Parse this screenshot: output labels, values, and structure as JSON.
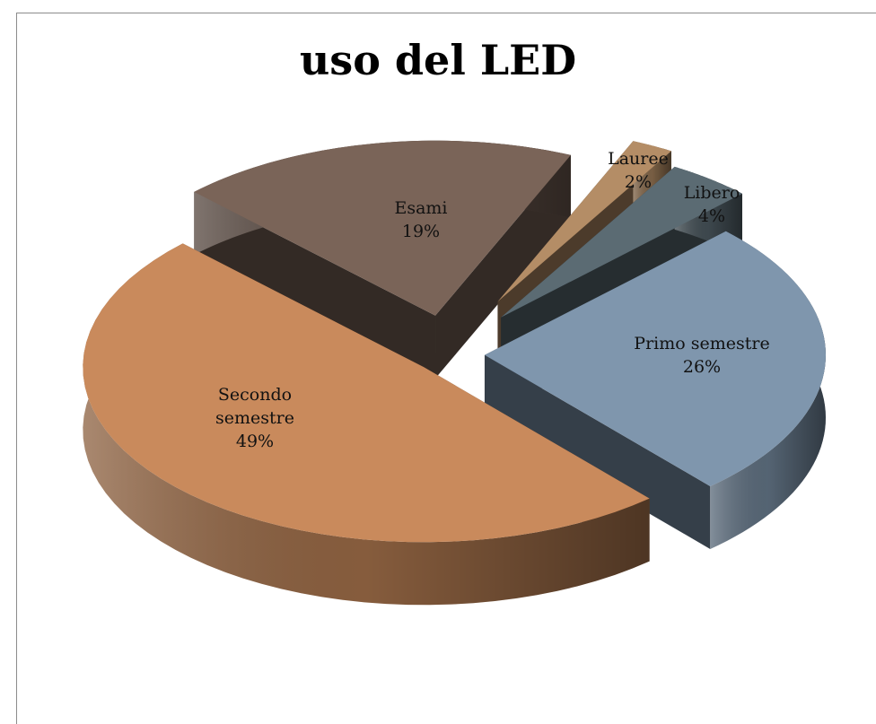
{
  "chart_data": {
    "type": "pie",
    "title": "uso del LED",
    "slices": [
      {
        "label": "Primo semestre",
        "value": 26,
        "value_label": "26%",
        "color": "#7f96ad",
        "label_lines": [
          "Primo semestre",
          "26%"
        ]
      },
      {
        "label": "Secondo semestre",
        "value": 49,
        "value_label": "49%",
        "color": "#c98a5c",
        "label_lines": [
          "Secondo",
          "semestre",
          "49%"
        ]
      },
      {
        "label": "Esami",
        "value": 19,
        "value_label": "19%",
        "color": "#7a6458",
        "label_lines": [
          "Esami",
          "19%"
        ]
      },
      {
        "label": "Lauree",
        "value": 2,
        "value_label": "2%",
        "color": "#b48d66",
        "label_lines": [
          "Lauree",
          "2%"
        ]
      },
      {
        "label": "Libero",
        "value": 4,
        "value_label": "4%",
        "color": "#5b6b73",
        "label_lines": [
          "Libero",
          "4%"
        ]
      }
    ],
    "style": "3d-exploded"
  }
}
